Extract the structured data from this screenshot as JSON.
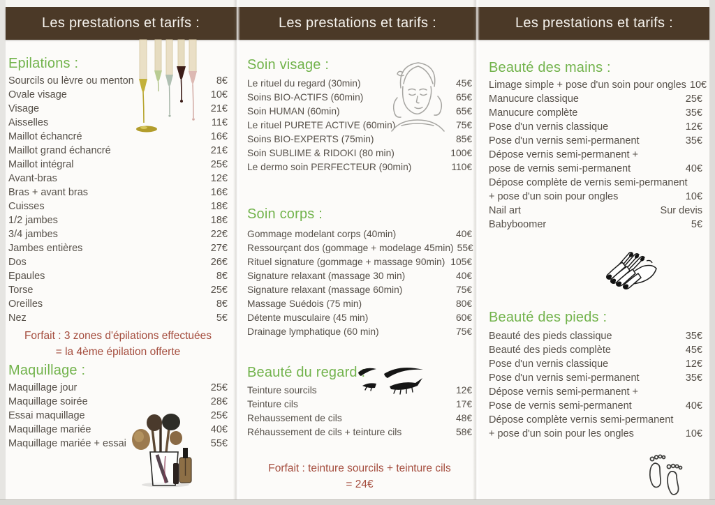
{
  "header": {
    "title": "Les prestations et tarifs :"
  },
  "colors": {
    "band_background": "#4b3927",
    "band_text": "#f6f3ee",
    "section_title_green": "#72b34c",
    "item_text": "#565049",
    "note_red": "#a44c3d",
    "paper": "#fcfbf9"
  },
  "panels": [
    {
      "name": "epilations-maquillage",
      "sections": [
        {
          "title": "Epilations :",
          "items": [
            {
              "label": "Sourcils ou lèvre ou menton",
              "price": "8€"
            },
            {
              "label": "Ovale visage",
              "price": "10€"
            },
            {
              "label": "Visage",
              "price": "21€"
            },
            {
              "label": "Aisselles",
              "price": "11€"
            },
            {
              "label": "Maillot échancré",
              "price": "16€"
            },
            {
              "label": "Maillot grand échancré",
              "price": "21€"
            },
            {
              "label": "Maillot intégral",
              "price": "25€"
            },
            {
              "label": "Avant-bras",
              "price": "12€"
            },
            {
              "label": "Bras + avant bras",
              "price": "16€"
            },
            {
              "label": "Cuisses",
              "price": "18€"
            },
            {
              "label": "1/2 jambes",
              "price": "18€"
            },
            {
              "label": "3/4 jambes",
              "price": "22€"
            },
            {
              "label": "Jambes entières",
              "price": "27€"
            },
            {
              "label": "Dos",
              "price": "26€"
            },
            {
              "label": "Epaules",
              "price": "8€"
            },
            {
              "label": "Torse",
              "price": "25€"
            },
            {
              "label": "Oreilles",
              "price": "8€"
            },
            {
              "label": "Nez",
              "price": "5€"
            }
          ],
          "note_lines": [
            "Forfait : 3 zones d'épilations effectuées",
            "= la 4ème épilation offerte"
          ]
        },
        {
          "title": "Maquillage :",
          "items": [
            {
              "label": "Maquillage jour",
              "price": "25€"
            },
            {
              "label": "Maquillage soirée",
              "price": "28€"
            },
            {
              "label": "Essai maquillage",
              "price": "25€"
            },
            {
              "label": "Maquillage mariée",
              "price": "40€"
            },
            {
              "label": "Maquillage mariée + essai",
              "price": "55€"
            }
          ]
        }
      ]
    },
    {
      "name": "soins",
      "sections": [
        {
          "title": "Soin visage :",
          "items": [
            {
              "label": "Le rituel du regard (30min)",
              "price": "45€"
            },
            {
              "label": "Soins BIO-ACTIFS (60min)",
              "price": "65€"
            },
            {
              "label": "Soin HUMAN (60min)",
              "price": "65€"
            },
            {
              "label": "Le rituel PURETE ACTIVE (60min)",
              "price": "75€"
            },
            {
              "label": "Soins BIO-EXPERTS (75min)",
              "price": "85€"
            },
            {
              "label": "Soin SUBLIME & RIDOKI (80 min)",
              "price": "100€"
            },
            {
              "label": "Le dermo soin PERFECTEUR (90min)",
              "price": "110€"
            }
          ]
        },
        {
          "title": "Soin corps :",
          "items": [
            {
              "label": "Gommage modelant corps (40min)",
              "price": "40€"
            },
            {
              "label": "Ressourçant dos (gommage + modelage 45min)",
              "price": "55€"
            },
            {
              "label": "Rituel signature (gommage + massage 90min)",
              "price": "105€"
            },
            {
              "label": "Signature relaxant (massage 30 min)",
              "price": "40€"
            },
            {
              "label": "Signature relaxant (massage 60min)",
              "price": "75€"
            },
            {
              "label": "Massage Suédois (75 min)",
              "price": "80€"
            },
            {
              "label": "Détente musculaire (45 min)",
              "price": "60€"
            },
            {
              "label": "Drainage lymphatique (60 min)",
              "price": "75€"
            }
          ]
        },
        {
          "title": "Beauté du regard :",
          "items": [
            {
              "label": "Teinture sourcils",
              "price": "12€"
            },
            {
              "label": "Teinture cils",
              "price": "17€"
            },
            {
              "label": "Rehaussement de cils",
              "price": "48€"
            },
            {
              "label": "Réhaussement de cils + teinture cils",
              "price": "58€"
            }
          ],
          "note_lines": [
            "Forfait : teinture sourcils + teinture cils",
            "= 24€"
          ]
        }
      ]
    },
    {
      "name": "mains-pieds",
      "sections": [
        {
          "title": "Beauté des mains :",
          "items": [
            {
              "label": "Limage simple + pose d'un soin pour ongles",
              "price": "10€"
            },
            {
              "label": "Manucure classique",
              "price": "25€"
            },
            {
              "label": "Manucure complète",
              "price": "35€"
            },
            {
              "label": "Pose d'un vernis classique",
              "price": "12€"
            },
            {
              "label": "Pose d'un vernis semi-permanent",
              "price": "35€"
            },
            {
              "label": "Dépose vernis semi-permanent +",
              "price": ""
            },
            {
              "label": "pose de vernis semi-permanent",
              "price": "40€"
            },
            {
              "label": "Dépose complète de vernis semi-permanent",
              "price": ""
            },
            {
              "label": "+ pose d'un soin pour ongles",
              "price": "10€"
            },
            {
              "label": "Nail art",
              "price": "Sur devis"
            },
            {
              "label": "Babyboomer",
              "price": "5€"
            }
          ]
        },
        {
          "title": "Beauté des pieds :",
          "items": [
            {
              "label": "Beauté des pieds classique",
              "price": "35€"
            },
            {
              "label": "Beauté des pieds complète",
              "price": "45€"
            },
            {
              "label": "Pose d'un vernis classique",
              "price": "12€"
            },
            {
              "label": "Pose d'un vernis semi-permanent",
              "price": "35€"
            },
            {
              "label": "Dépose vernis semi-permanent +",
              "price": ""
            },
            {
              "label": "Pose de vernis semi-permanent",
              "price": "40€"
            },
            {
              "label": "Dépose complète vernis semi-permanent",
              "price": ""
            },
            {
              "label": "+ pose d'un soin pour les ongles",
              "price": "10€"
            }
          ]
        }
      ]
    }
  ],
  "illustrations": [
    "wax-spatulas",
    "makeup-brushes",
    "facial-massage",
    "eyebrows-lashes",
    "manicured-hands",
    "footprints"
  ]
}
